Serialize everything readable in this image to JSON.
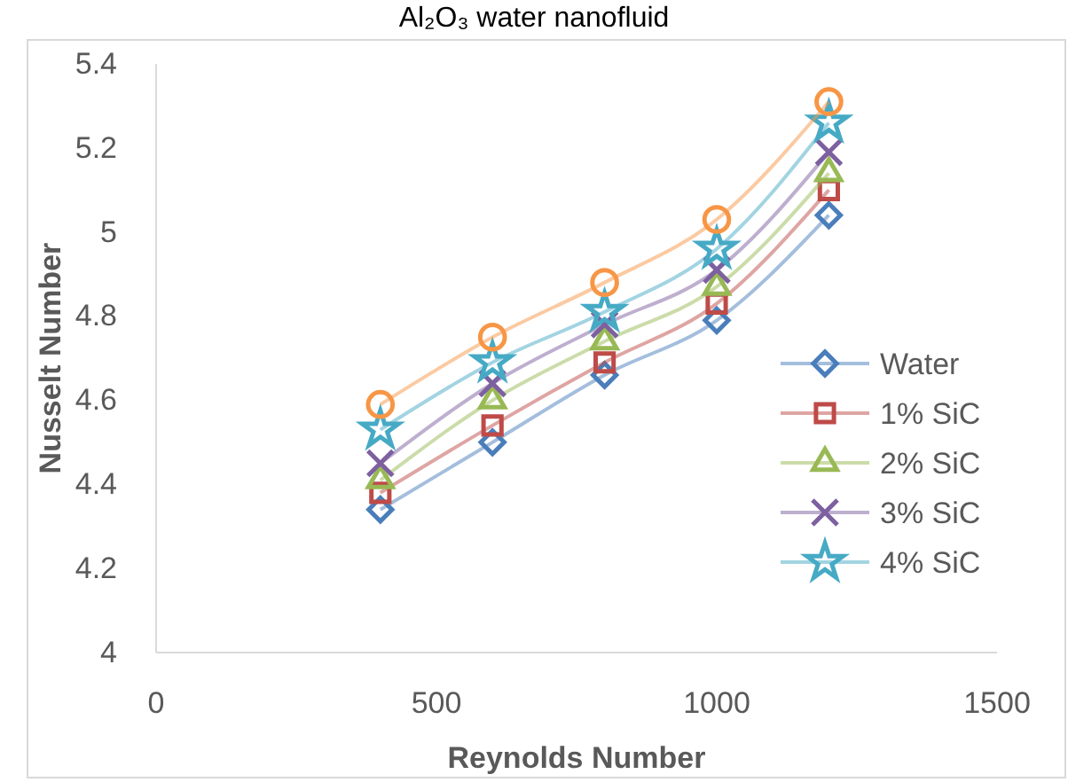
{
  "chart_data": {
    "type": "line",
    "title": "Al₂O₃ water nanofluid",
    "xlabel": "Reynolds Number",
    "ylabel": "Nusselt Number",
    "x": [
      400,
      600,
      800,
      1000,
      1200
    ],
    "xlim": [
      0,
      1500
    ],
    "xticks": [
      0,
      500,
      1000,
      1500
    ],
    "ylim": [
      4,
      5.4
    ],
    "yticks": [
      4,
      4.2,
      4.4,
      4.6,
      4.8,
      5,
      5.2,
      5.4
    ],
    "grid": false,
    "legend": "right",
    "series": [
      {
        "name": "Water",
        "color": "#4a7ebb",
        "marker": "diamond",
        "values": [
          4.34,
          4.5,
          4.66,
          4.79,
          5.04
        ]
      },
      {
        "name": "1% SiC",
        "color": "#be4b48",
        "marker": "square",
        "values": [
          4.38,
          4.54,
          4.69,
          4.83,
          5.1
        ]
      },
      {
        "name": "2% SiC",
        "color": "#98b954",
        "marker": "triangle",
        "values": [
          4.41,
          4.6,
          4.74,
          4.87,
          5.14
        ]
      },
      {
        "name": "3% SiC",
        "color": "#7d60a0",
        "marker": "cross",
        "values": [
          4.45,
          4.64,
          4.78,
          4.91,
          5.19
        ]
      },
      {
        "name": "4% SiC",
        "color": "#46aac5",
        "marker": "star",
        "values": [
          4.53,
          4.69,
          4.81,
          4.96,
          5.26
        ]
      },
      {
        "color": "#f79646",
        "marker": "circle",
        "values": [
          4.59,
          4.75,
          4.88,
          5.03,
          5.31
        ]
      }
    ]
  }
}
